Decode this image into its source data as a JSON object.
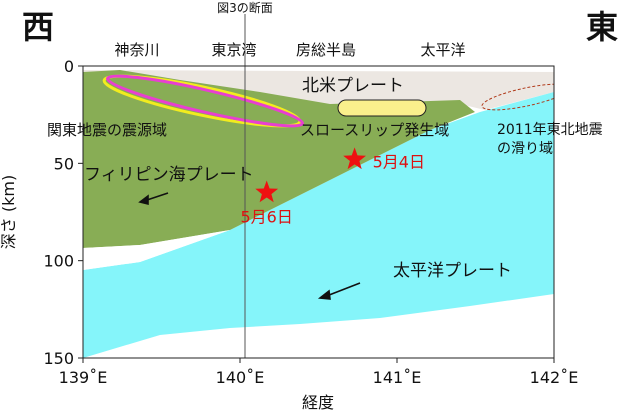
{
  "directions": {
    "west": "西",
    "east": "東"
  },
  "section_label": "図3の断面",
  "place_names": [
    "神奈川",
    "東京湾",
    "房総半島",
    "太平洋"
  ],
  "plates": {
    "north_american": "北米プレート",
    "philippine": "フィリピン海プレート",
    "pacific": "太平洋プレート"
  },
  "regions": {
    "kanto_source": "関東地震の震源域",
    "slow_slip": "スロースリップ発生域",
    "tohoku_slip_line1": "2011年東北地震",
    "tohoku_slip_line2": "の滑り域"
  },
  "events": [
    {
      "label": "5月4日",
      "lon": 140.73,
      "depth": 48
    },
    {
      "label": "5月6日",
      "lon": 140.17,
      "depth": 65
    }
  ],
  "axes": {
    "xlabel": "経度",
    "ylabel": "深さ (km)",
    "x_ticks": [
      {
        "value": 139,
        "label": "139˚E"
      },
      {
        "value": 140,
        "label": "140˚E"
      },
      {
        "value": 141,
        "label": "141˚E"
      },
      {
        "value": 142,
        "label": "142˚E"
      }
    ],
    "y_ticks": [
      {
        "value": 0,
        "label": "0"
      },
      {
        "value": 50,
        "label": "50"
      },
      {
        "value": 100,
        "label": "100"
      },
      {
        "value": 150,
        "label": "150"
      }
    ],
    "xlim": [
      139,
      142
    ],
    "ylim": [
      0,
      150
    ]
  },
  "colors": {
    "north_american": "#ece7e2",
    "philippine": "#88ad55",
    "pacific": "#85f5fa",
    "kanto_outline_yellow": "#f2ec1e",
    "kanto_outline_magenta": "#e83fd0",
    "slow_slip": "#faf08c",
    "tohoku_dash": "#b03a1a",
    "event_star": "#ee1111",
    "event_text": "#dd1111"
  }
}
